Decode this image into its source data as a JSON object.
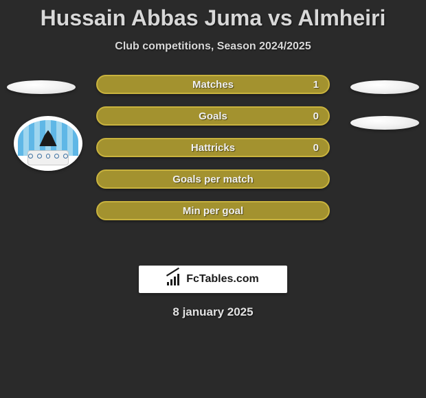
{
  "title": "Hussain Abbas Juma vs Almheiri",
  "subtitle": "Club competitions, Season 2024/2025",
  "branding_text": "FcTables.com",
  "date": "8 january 2025",
  "colors": {
    "background": "#2a2a2a",
    "pill_fill": "#a3922f",
    "pill_border": "#c9b33e",
    "text": "#f0f0f0",
    "ellipse": "#ececec",
    "badge_sky_a": "#5fb7e6",
    "badge_sky_b": "#9fd6ef",
    "branding_bg": "#ffffff"
  },
  "stats": [
    {
      "label": "Matches",
      "value": "1"
    },
    {
      "label": "Goals",
      "value": "0"
    },
    {
      "label": "Hattricks",
      "value": "0"
    },
    {
      "label": "Goals per match",
      "value": ""
    },
    {
      "label": "Min per goal",
      "value": ""
    }
  ],
  "left_ellipses_count": 1,
  "right_ellipses_count": 2,
  "team_badge_visible": true
}
